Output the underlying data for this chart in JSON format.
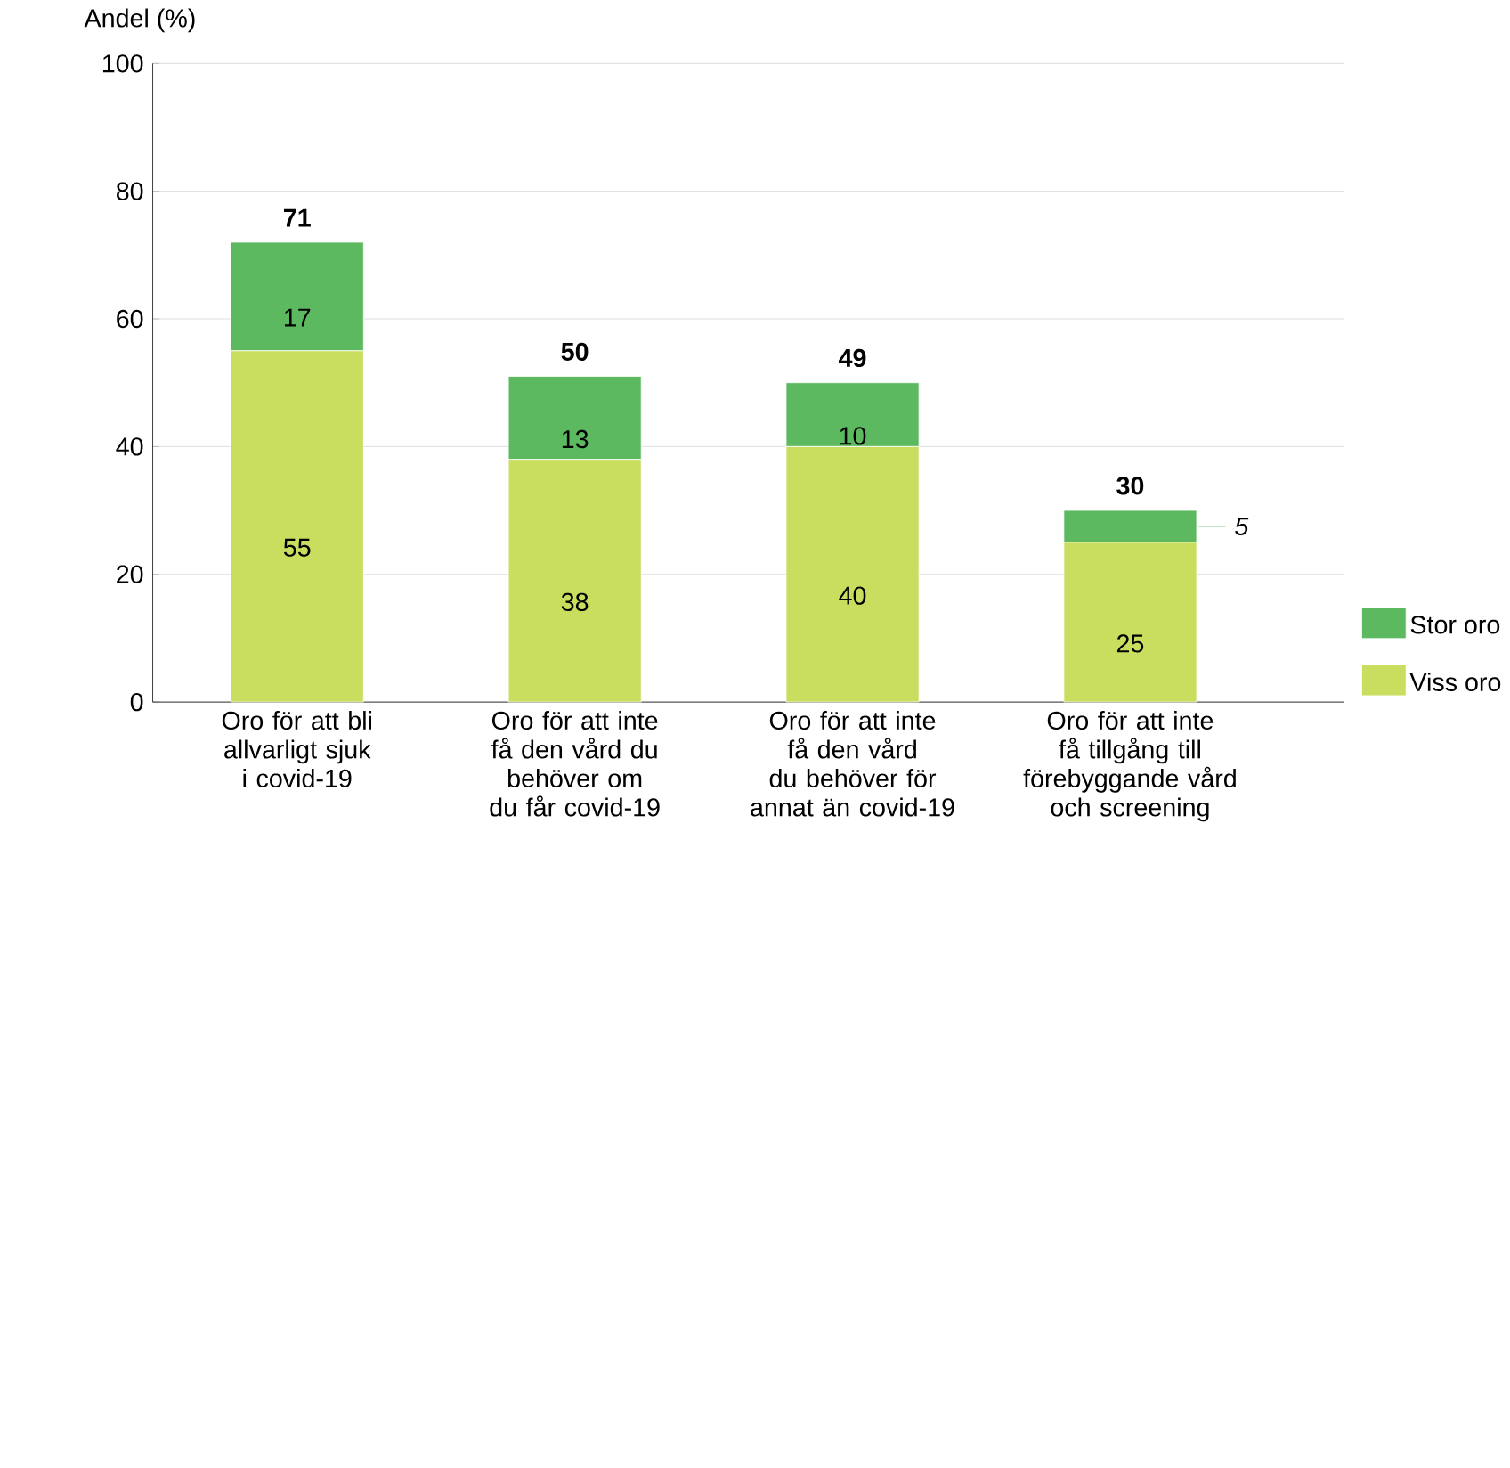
{
  "chart_data": {
    "type": "bar",
    "stacked": true,
    "ylabel": "Andel (%)",
    "categories": [
      "Oro för att bli allvarligt sjuk i covid-19",
      "Oro för att inte få den vård du behöver om du får covid-19",
      "Oro för att inte få den vård du behöver för annat än covid-19",
      "Oro för att inte få tillgång till förebyggande vård och screening"
    ],
    "series": [
      {
        "name": "Viss oro",
        "color": "#c9dd5f",
        "values": [
          55,
          38,
          40,
          25
        ]
      },
      {
        "name": "Stor oro",
        "color": "#5cb95f",
        "values": [
          17,
          13,
          10,
          5
        ]
      }
    ],
    "totals": [
      "71",
      "50",
      "49",
      "30"
    ],
    "data_labels": true,
    "ylim": [
      0,
      100
    ],
    "yticks": [
      0,
      20,
      40,
      60,
      80,
      100
    ],
    "grid": "y",
    "legend": "bottom right"
  }
}
